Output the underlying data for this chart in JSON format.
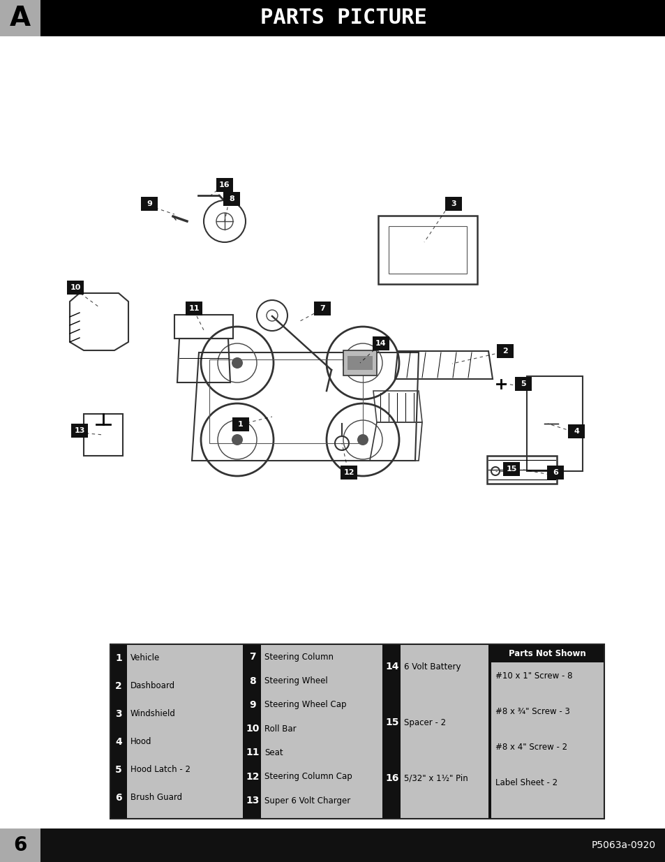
{
  "title": "PARTS PICTURE",
  "tab_letter": "A",
  "page_number": "6",
  "footer_code": "P5063a-0920",
  "header_bg": "#000000",
  "header_text_color": "#ffffff",
  "tab_bg": "#aaaaaa",
  "page_bg": "#ffffff",
  "parts_col1": [
    {
      "num": "1",
      "label": "Vehicle"
    },
    {
      "num": "2",
      "label": "Dashboard"
    },
    {
      "num": "3",
      "label": "Windshield"
    },
    {
      "num": "4",
      "label": "Hood"
    },
    {
      "num": "5",
      "label": "Hood Latch - 2"
    },
    {
      "num": "6",
      "label": "Brush Guard"
    }
  ],
  "parts_col2": [
    {
      "num": "7",
      "label": "Steering Column"
    },
    {
      "num": "8",
      "label": "Steering Wheel"
    },
    {
      "num": "9",
      "label": "Steering Wheel Cap"
    },
    {
      "num": "10",
      "label": "Roll Bar"
    },
    {
      "num": "11",
      "label": "Seat"
    },
    {
      "num": "12",
      "label": "Steering Column Cap"
    },
    {
      "num": "13",
      "label": "Super 6 Volt Charger"
    }
  ],
  "parts_col3": [
    {
      "num": "14",
      "label": "6 Volt Battery"
    },
    {
      "num": "15",
      "label": "Spacer - 2"
    },
    {
      "num": "16",
      "label": "5/32\" x 1½\" Pin"
    }
  ],
  "parts_not_shown": [
    "#10 x 1\" Screw - 8",
    "#8 x ¾\" Screw - 3",
    "#8 x 4\" Screw - 2",
    "Label Sheet - 2"
  ],
  "parts_not_shown_title": "Parts Not Shown",
  "table_bg_dark": "#111111",
  "table_bg_light": "#c0c0c0",
  "table_text_dark": "#000000",
  "table_text_white": "#ffffff",
  "footer_bg": "#111111",
  "footer_text": "#ffffff",
  "footer_tab_bg": "#aaaaaa"
}
